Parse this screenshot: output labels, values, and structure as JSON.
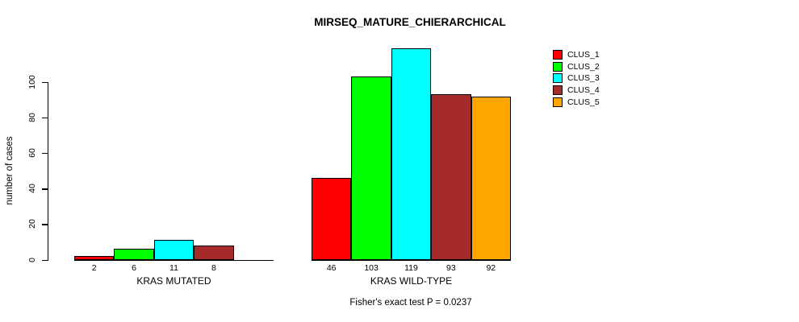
{
  "title": "MIRSEQ_MATURE_CHIERARCHICAL",
  "y_axis": {
    "label": "number of cases"
  },
  "footer": "Fisher's exact test P = 0.0237",
  "legend": {
    "items": [
      {
        "label": "CLUS_1",
        "color": "#FF0000"
      },
      {
        "label": "CLUS_2",
        "color": "#00FF00"
      },
      {
        "label": "CLUS_3",
        "color": "#00FFFF"
      },
      {
        "label": "CLUS_4",
        "color": "#A52A2A"
      },
      {
        "label": "CLUS_5",
        "color": "#FFA500"
      }
    ]
  },
  "chart_data": {
    "type": "bar",
    "title": "MIRSEQ_MATURE_CHIERARCHICAL",
    "ylabel": "number of cases",
    "xlabel": "",
    "ylim": [
      0,
      100
    ],
    "yticks": [
      0,
      20,
      40,
      60,
      80,
      100
    ],
    "grid": false,
    "legend_position": "right",
    "categories": [
      "KRAS MUTATED",
      "KRAS WILD-TYPE"
    ],
    "series": [
      {
        "name": "CLUS_1",
        "color": "#FF0000",
        "values": [
          2,
          46
        ]
      },
      {
        "name": "CLUS_2",
        "color": "#00FF00",
        "values": [
          6,
          103
        ]
      },
      {
        "name": "CLUS_3",
        "color": "#00FFFF",
        "values": [
          11,
          119
        ]
      },
      {
        "name": "CLUS_4",
        "color": "#A52A2A",
        "values": [
          8,
          93
        ]
      },
      {
        "name": "CLUS_5",
        "color": "#FFA500",
        "values": [
          0,
          92
        ]
      }
    ],
    "bar_value_labels": [
      [
        "2",
        "6",
        "11",
        "8",
        ""
      ],
      [
        "46",
        "103",
        "119",
        "93",
        "92"
      ]
    ],
    "annotation": "Fisher's exact test P = 0.0237"
  }
}
